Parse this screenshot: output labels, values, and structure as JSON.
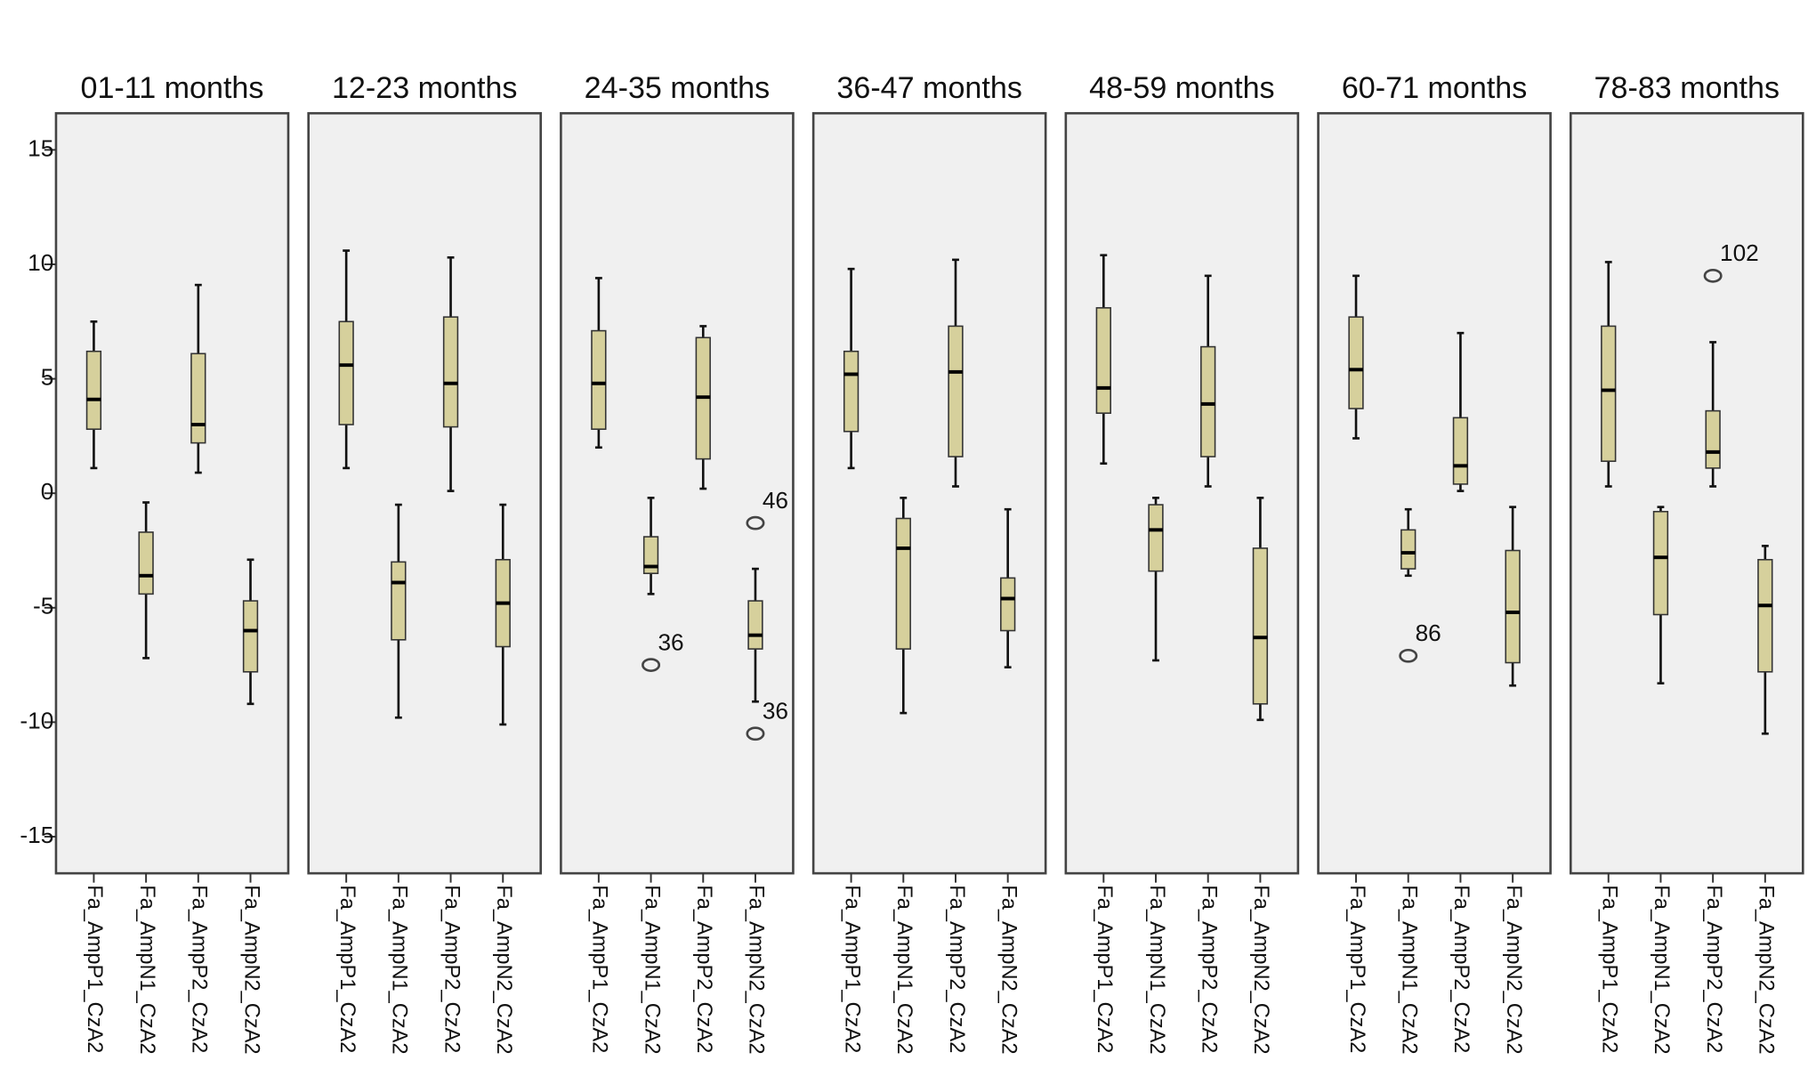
{
  "chart_data": [
    {
      "type": "box",
      "title": "01-11 months",
      "categories": [
        "Fa_AmpP1_CzA2",
        "Fa_AmpN1_CzA2",
        "Fa_AmpP2_CzA2",
        "Fa_AmpN2_CzA2"
      ],
      "ylim": [
        -16.6,
        16.6
      ],
      "yticks": [
        15,
        10,
        5,
        0,
        -5,
        -10,
        -15
      ],
      "color": "#d6d09c",
      "boxes": [
        {
          "min": 1.1,
          "q1": 2.8,
          "median": 4.1,
          "q3": 6.2,
          "max": 7.5
        },
        {
          "min": -7.2,
          "q1": -4.4,
          "median": -3.6,
          "q3": -1.7,
          "max": -0.4
        },
        {
          "min": 0.9,
          "q1": 2.2,
          "median": 3.0,
          "q3": 6.1,
          "max": 9.1
        },
        {
          "min": -9.2,
          "q1": -7.8,
          "median": -6.0,
          "q3": -4.7,
          "max": -2.9
        }
      ]
    },
    {
      "type": "box",
      "title": "12-23 months",
      "categories": [
        "Fa_AmpP1_CzA2",
        "Fa_AmpN1_CzA2",
        "Fa_AmpP2_CzA2",
        "Fa_AmpN2_CzA2"
      ],
      "ylim": [
        -16.6,
        16.6
      ],
      "color": "#d6d09c",
      "boxes": [
        {
          "min": 1.1,
          "q1": 3.0,
          "median": 5.6,
          "q3": 7.5,
          "max": 10.6
        },
        {
          "min": -9.8,
          "q1": -6.4,
          "median": -3.9,
          "q3": -3.0,
          "max": -0.5
        },
        {
          "min": 0.1,
          "q1": 2.9,
          "median": 4.8,
          "q3": 7.7,
          "max": 10.3
        },
        {
          "min": -10.1,
          "q1": -6.7,
          "median": -4.8,
          "q3": -2.9,
          "max": -0.5
        }
      ]
    },
    {
      "type": "box",
      "title": "24-35 months",
      "categories": [
        "Fa_AmpP1_CzA2",
        "Fa_AmpN1_CzA2",
        "Fa_AmpP2_CzA2",
        "Fa_AmpN2_CzA2"
      ],
      "ylim": [
        -16.6,
        16.6
      ],
      "color": "#d6d09c",
      "boxes": [
        {
          "min": 2.0,
          "q1": 2.8,
          "median": 4.8,
          "q3": 7.1,
          "max": 9.4
        },
        {
          "min": -4.4,
          "q1": -3.5,
          "median": -3.2,
          "q3": -1.9,
          "max": -0.2,
          "outliers": [
            {
              "value": -7.5,
              "label": "36"
            }
          ]
        },
        {
          "min": 0.2,
          "q1": 1.5,
          "median": 4.2,
          "q3": 6.8,
          "max": 7.3
        },
        {
          "min": -9.1,
          "q1": -6.8,
          "median": -6.2,
          "q3": -4.7,
          "max": -3.3,
          "outliers": [
            {
              "value": -1.3,
              "label": "46"
            },
            {
              "value": -10.5,
              "label": "36"
            }
          ]
        }
      ]
    },
    {
      "type": "box",
      "title": "36-47 months",
      "categories": [
        "Fa_AmpP1_CzA2",
        "Fa_AmpN1_CzA2",
        "Fa_AmpP2_CzA2",
        "Fa_AmpN2_CzA2"
      ],
      "ylim": [
        -16.6,
        16.6
      ],
      "color": "#d6d09c",
      "boxes": [
        {
          "min": 1.1,
          "q1": 2.7,
          "median": 5.2,
          "q3": 6.2,
          "max": 9.8
        },
        {
          "min": -9.6,
          "q1": -6.8,
          "median": -2.4,
          "q3": -1.1,
          "max": -0.2
        },
        {
          "min": 0.3,
          "q1": 1.6,
          "median": 5.3,
          "q3": 7.3,
          "max": 10.2
        },
        {
          "min": -7.6,
          "q1": -6.0,
          "median": -4.6,
          "q3": -3.7,
          "max": -0.7
        }
      ]
    },
    {
      "type": "box",
      "title": "48-59 months",
      "categories": [
        "Fa_AmpP1_CzA2",
        "Fa_AmpN1_CzA2",
        "Fa_AmpP2_CzA2",
        "Fa_AmpN2_CzA2"
      ],
      "ylim": [
        -16.6,
        16.6
      ],
      "color": "#d6d09c",
      "boxes": [
        {
          "min": 1.3,
          "q1": 3.5,
          "median": 4.6,
          "q3": 8.1,
          "max": 10.4
        },
        {
          "min": -7.3,
          "q1": -3.4,
          "median": -1.6,
          "q3": -0.5,
          "max": -0.2
        },
        {
          "min": 0.3,
          "q1": 1.6,
          "median": 3.9,
          "q3": 6.4,
          "max": 9.5
        },
        {
          "min": -9.9,
          "q1": -9.2,
          "median": -6.3,
          "q3": -2.4,
          "max": -0.2
        }
      ]
    },
    {
      "type": "box",
      "title": "60-71 months",
      "categories": [
        "Fa_AmpP1_CzA2",
        "Fa_AmpN1_CzA2",
        "Fa_AmpP2_CzA2",
        "Fa_AmpN2_CzA2"
      ],
      "ylim": [
        -16.6,
        16.6
      ],
      "color": "#d6d09c",
      "boxes": [
        {
          "min": 2.4,
          "q1": 3.7,
          "median": 5.4,
          "q3": 7.7,
          "max": 9.5
        },
        {
          "min": -3.6,
          "q1": -3.3,
          "median": -2.6,
          "q3": -1.6,
          "max": -0.7,
          "outliers": [
            {
              "value": -7.1,
              "label": "86"
            }
          ]
        },
        {
          "min": 0.1,
          "q1": 0.4,
          "median": 1.2,
          "q3": 3.3,
          "max": 7.0
        },
        {
          "min": -8.4,
          "q1": -7.4,
          "median": -5.2,
          "q3": -2.5,
          "max": -0.6
        }
      ]
    },
    {
      "type": "box",
      "title": "78-83 months",
      "categories": [
        "Fa_AmpP1_CzA2",
        "Fa_AmpN1_CzA2",
        "Fa_AmpP2_CzA2",
        "Fa_AmpN2_CzA2"
      ],
      "ylim": [
        -16.6,
        16.6
      ],
      "color": "#d6d09c",
      "boxes": [
        {
          "min": 0.3,
          "q1": 1.4,
          "median": 4.5,
          "q3": 7.3,
          "max": 10.1
        },
        {
          "min": -8.3,
          "q1": -5.3,
          "median": -2.8,
          "q3": -0.8,
          "max": -0.6
        },
        {
          "min": 0.3,
          "q1": 1.1,
          "median": 1.8,
          "q3": 3.6,
          "max": 6.6,
          "outliers": [
            {
              "value": 9.5,
              "label": "102"
            }
          ]
        },
        {
          "min": -10.5,
          "q1": -7.8,
          "median": -4.9,
          "q3": -2.9,
          "max": -2.3
        }
      ]
    }
  ]
}
